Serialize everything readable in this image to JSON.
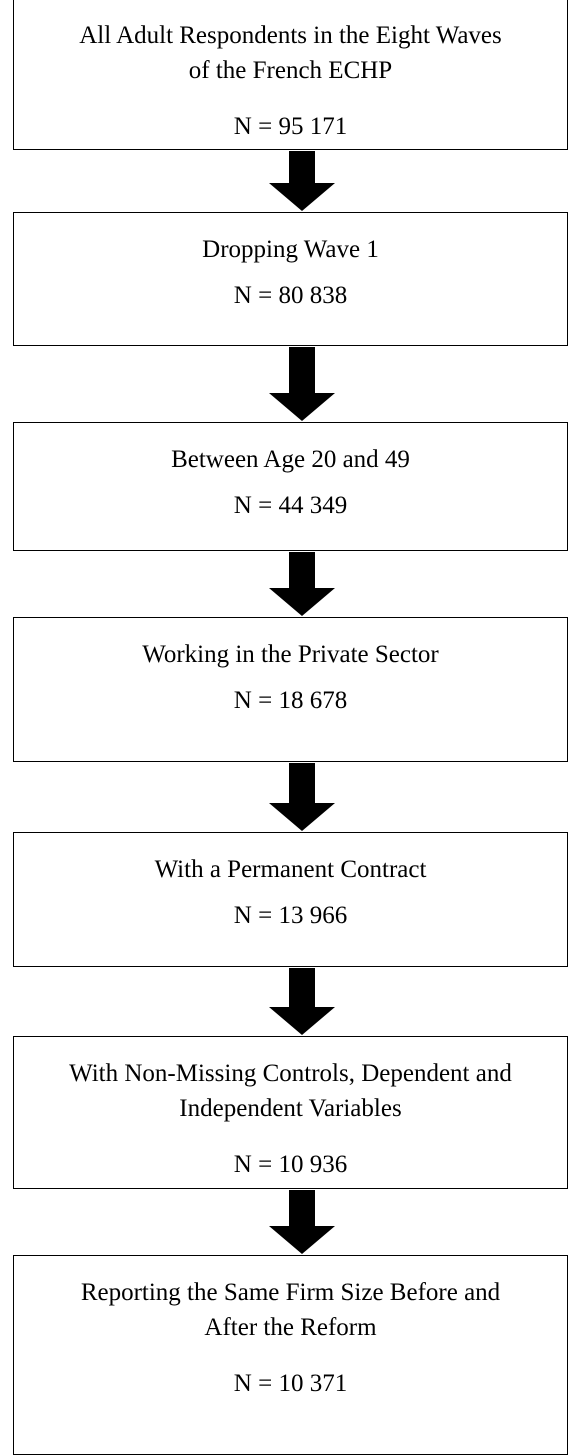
{
  "nodes": [
    {
      "lines": [
        "All Adult Respondents in the Eight Waves",
        "of the French ECHP"
      ],
      "count": "N = 95 171"
    },
    {
      "lines": [
        "Dropping Wave 1"
      ],
      "count": "N = 80 838"
    },
    {
      "lines": [
        "Between Age 20 and 49"
      ],
      "count": "N = 44 349"
    },
    {
      "lines": [
        "Working in the Private Sector"
      ],
      "count": "N = 18 678"
    },
    {
      "lines": [
        "With a Permanent Contract"
      ],
      "count": "N = 13 966"
    },
    {
      "lines": [
        "With Non-Missing Controls, Dependent and",
        "Independent Variables"
      ],
      "count": "N = 10 936"
    },
    {
      "lines": [
        "Reporting the Same Firm Size Before and",
        "After the Reform"
      ],
      "count": "N = 10 371"
    }
  ]
}
